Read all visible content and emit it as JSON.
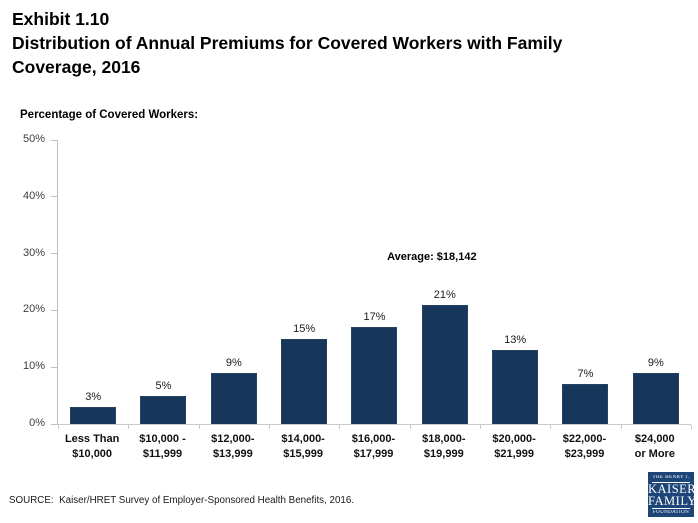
{
  "header": {
    "exhibit": "Exhibit 1.10",
    "title": "Distribution of Annual Premiums for Covered Workers with Family Coverage, 2016"
  },
  "chart_data": {
    "type": "bar",
    "title": "Distribution of Annual Premiums for Covered Workers with Family Coverage, 2016",
    "ylabel": "Percentage of Covered Workers:",
    "xlabel": "",
    "categories": [
      "Less Than\n$10,000",
      "$10,000 -\n$11,999",
      "$12,000-\n$13,999",
      "$14,000-\n$15,999",
      "$16,000-\n$17,999",
      "$18,000-\n$19,999",
      "$20,000-\n$21,999",
      "$22,000-\n$23,999",
      "$24,000\nor More"
    ],
    "values": [
      3,
      5,
      9,
      15,
      17,
      21,
      13,
      7,
      9
    ],
    "value_labels": [
      "3%",
      "5%",
      "9%",
      "15%",
      "17%",
      "21%",
      "13%",
      "7%",
      "9%"
    ],
    "ylim": [
      0,
      50
    ],
    "ytick_step": 10,
    "yticks": [
      "0%",
      "10%",
      "20%",
      "30%",
      "40%",
      "50%"
    ],
    "grid": false,
    "legend": "none",
    "annotation": {
      "text": "Average: $18,142",
      "anchor_index": 5
    },
    "colors": {
      "bar_fill": "#17365c",
      "bar_border": "#25425f",
      "axis_line": "#bfbfbf"
    }
  },
  "footer": {
    "source": "SOURCE:  Kaiser/HRET Survey of Employer-Sponsored Health Benefits, 2016.",
    "logo": {
      "line1": "THE HENRY J.",
      "line2": "KAISER",
      "line3": "FAMILY",
      "line4": "FOUNDATION",
      "bg_color": "#1d4577"
    }
  }
}
